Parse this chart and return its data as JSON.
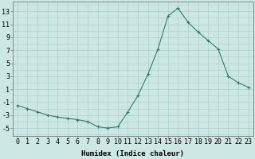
{
  "x": [
    0,
    1,
    2,
    3,
    4,
    5,
    6,
    7,
    8,
    9,
    10,
    11,
    12,
    13,
    14,
    15,
    16,
    17,
    18,
    19,
    20,
    21,
    22,
    23
  ],
  "y": [
    -1.5,
    -2.0,
    -2.5,
    -3.0,
    -3.3,
    -3.5,
    -3.7,
    -4.0,
    -4.8,
    -5.0,
    -4.8,
    -2.5,
    0.0,
    3.3,
    7.2,
    12.3,
    13.5,
    11.3,
    9.8,
    8.5,
    7.2,
    3.0,
    2.0,
    1.3
  ],
  "line_color": "#2e7d6e",
  "marker": "+",
  "bg_color": "#cde8e4",
  "grid_color": "#aacfca",
  "ylabel_ticks": [
    -5,
    -3,
    -1,
    1,
    3,
    5,
    7,
    9,
    11,
    13
  ],
  "ylim": [
    -6.2,
    14.5
  ],
  "xlim": [
    -0.5,
    23.5
  ],
  "xlabel": "Humidex (Indice chaleur)",
  "xlabel_fontsize": 6.5,
  "tick_fontsize": 6,
  "figsize": [
    3.2,
    2.0
  ],
  "dpi": 100
}
